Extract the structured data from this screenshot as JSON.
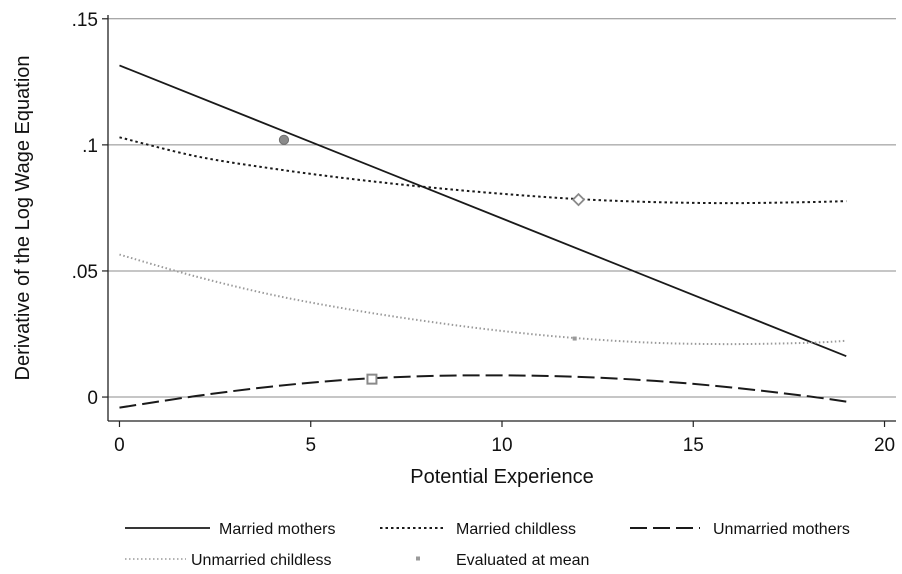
{
  "chart_data": {
    "type": "line",
    "title": "",
    "xlabel": "Potential Experience",
    "ylabel": "Derivative of the Log Wage Equation",
    "xlim": [
      -0.3,
      20.3
    ],
    "ylim": [
      -0.0095,
      0.1515
    ],
    "x_ticks": [
      0,
      5,
      10,
      15,
      20
    ],
    "x_tick_labels": [
      "0",
      "5",
      "10",
      "15",
      "20"
    ],
    "y_ticks": [
      0,
      0.05,
      0.1,
      0.15
    ],
    "y_tick_labels": [
      "0",
      ".05",
      ".1",
      ".15"
    ],
    "grid": "horizontal",
    "legend_position": "bottom",
    "series": [
      {
        "name": "Married mothers",
        "style": "solid",
        "color": "#1a1a1a",
        "x": [
          0,
          19
        ],
        "y": [
          0.1315,
          0.0162
        ],
        "mean_marker": {
          "shape": "circle",
          "x": 4.3,
          "y": 0.102
        }
      },
      {
        "name": "Married childless",
        "style": "dotted",
        "color": "#1a1a1a",
        "x": [
          0,
          2,
          4,
          6,
          8,
          10,
          12,
          14,
          16,
          18,
          19
        ],
        "y": [
          0.103,
          0.0955,
          0.0906,
          0.0866,
          0.0833,
          0.0806,
          0.0785,
          0.0773,
          0.0769,
          0.0773,
          0.0777
        ],
        "mean_marker": {
          "shape": "diamond",
          "x": 12.0,
          "y": 0.0783
        }
      },
      {
        "name": "Unmarried mothers",
        "style": "dashed",
        "color": "#1a1a1a",
        "x": [
          0,
          2,
          4,
          6,
          8,
          10,
          12,
          14,
          16,
          18,
          19
        ],
        "y": [
          -0.0042,
          0.0004,
          0.0042,
          0.0069,
          0.0083,
          0.0086,
          0.008,
          0.0064,
          0.0038,
          0.0003,
          -0.0018
        ],
        "mean_marker": {
          "shape": "square",
          "x": 6.6,
          "y": 0.0071
        }
      },
      {
        "name": "Unmarried childless",
        "style": "dotted",
        "color": "#9a9a9a",
        "x": [
          0,
          2,
          4,
          6,
          8,
          10,
          12,
          14,
          16,
          18,
          19
        ],
        "y": [
          0.0565,
          0.0478,
          0.0405,
          0.0348,
          0.0301,
          0.0262,
          0.0233,
          0.0215,
          0.021,
          0.0215,
          0.0223
        ],
        "mean_marker": {
          "shape": "small-square",
          "x": 11.9,
          "y": 0.0232
        }
      }
    ],
    "legend": [
      {
        "label": "Married mothers",
        "style": "solid"
      },
      {
        "label": "Married childless",
        "style": "dotted"
      },
      {
        "label": "Unmarried mothers",
        "style": "dashed"
      },
      {
        "label": "Unmarried childless",
        "style": "dotted-gray"
      },
      {
        "label": "Evaluated at mean",
        "style": "marker"
      }
    ]
  }
}
